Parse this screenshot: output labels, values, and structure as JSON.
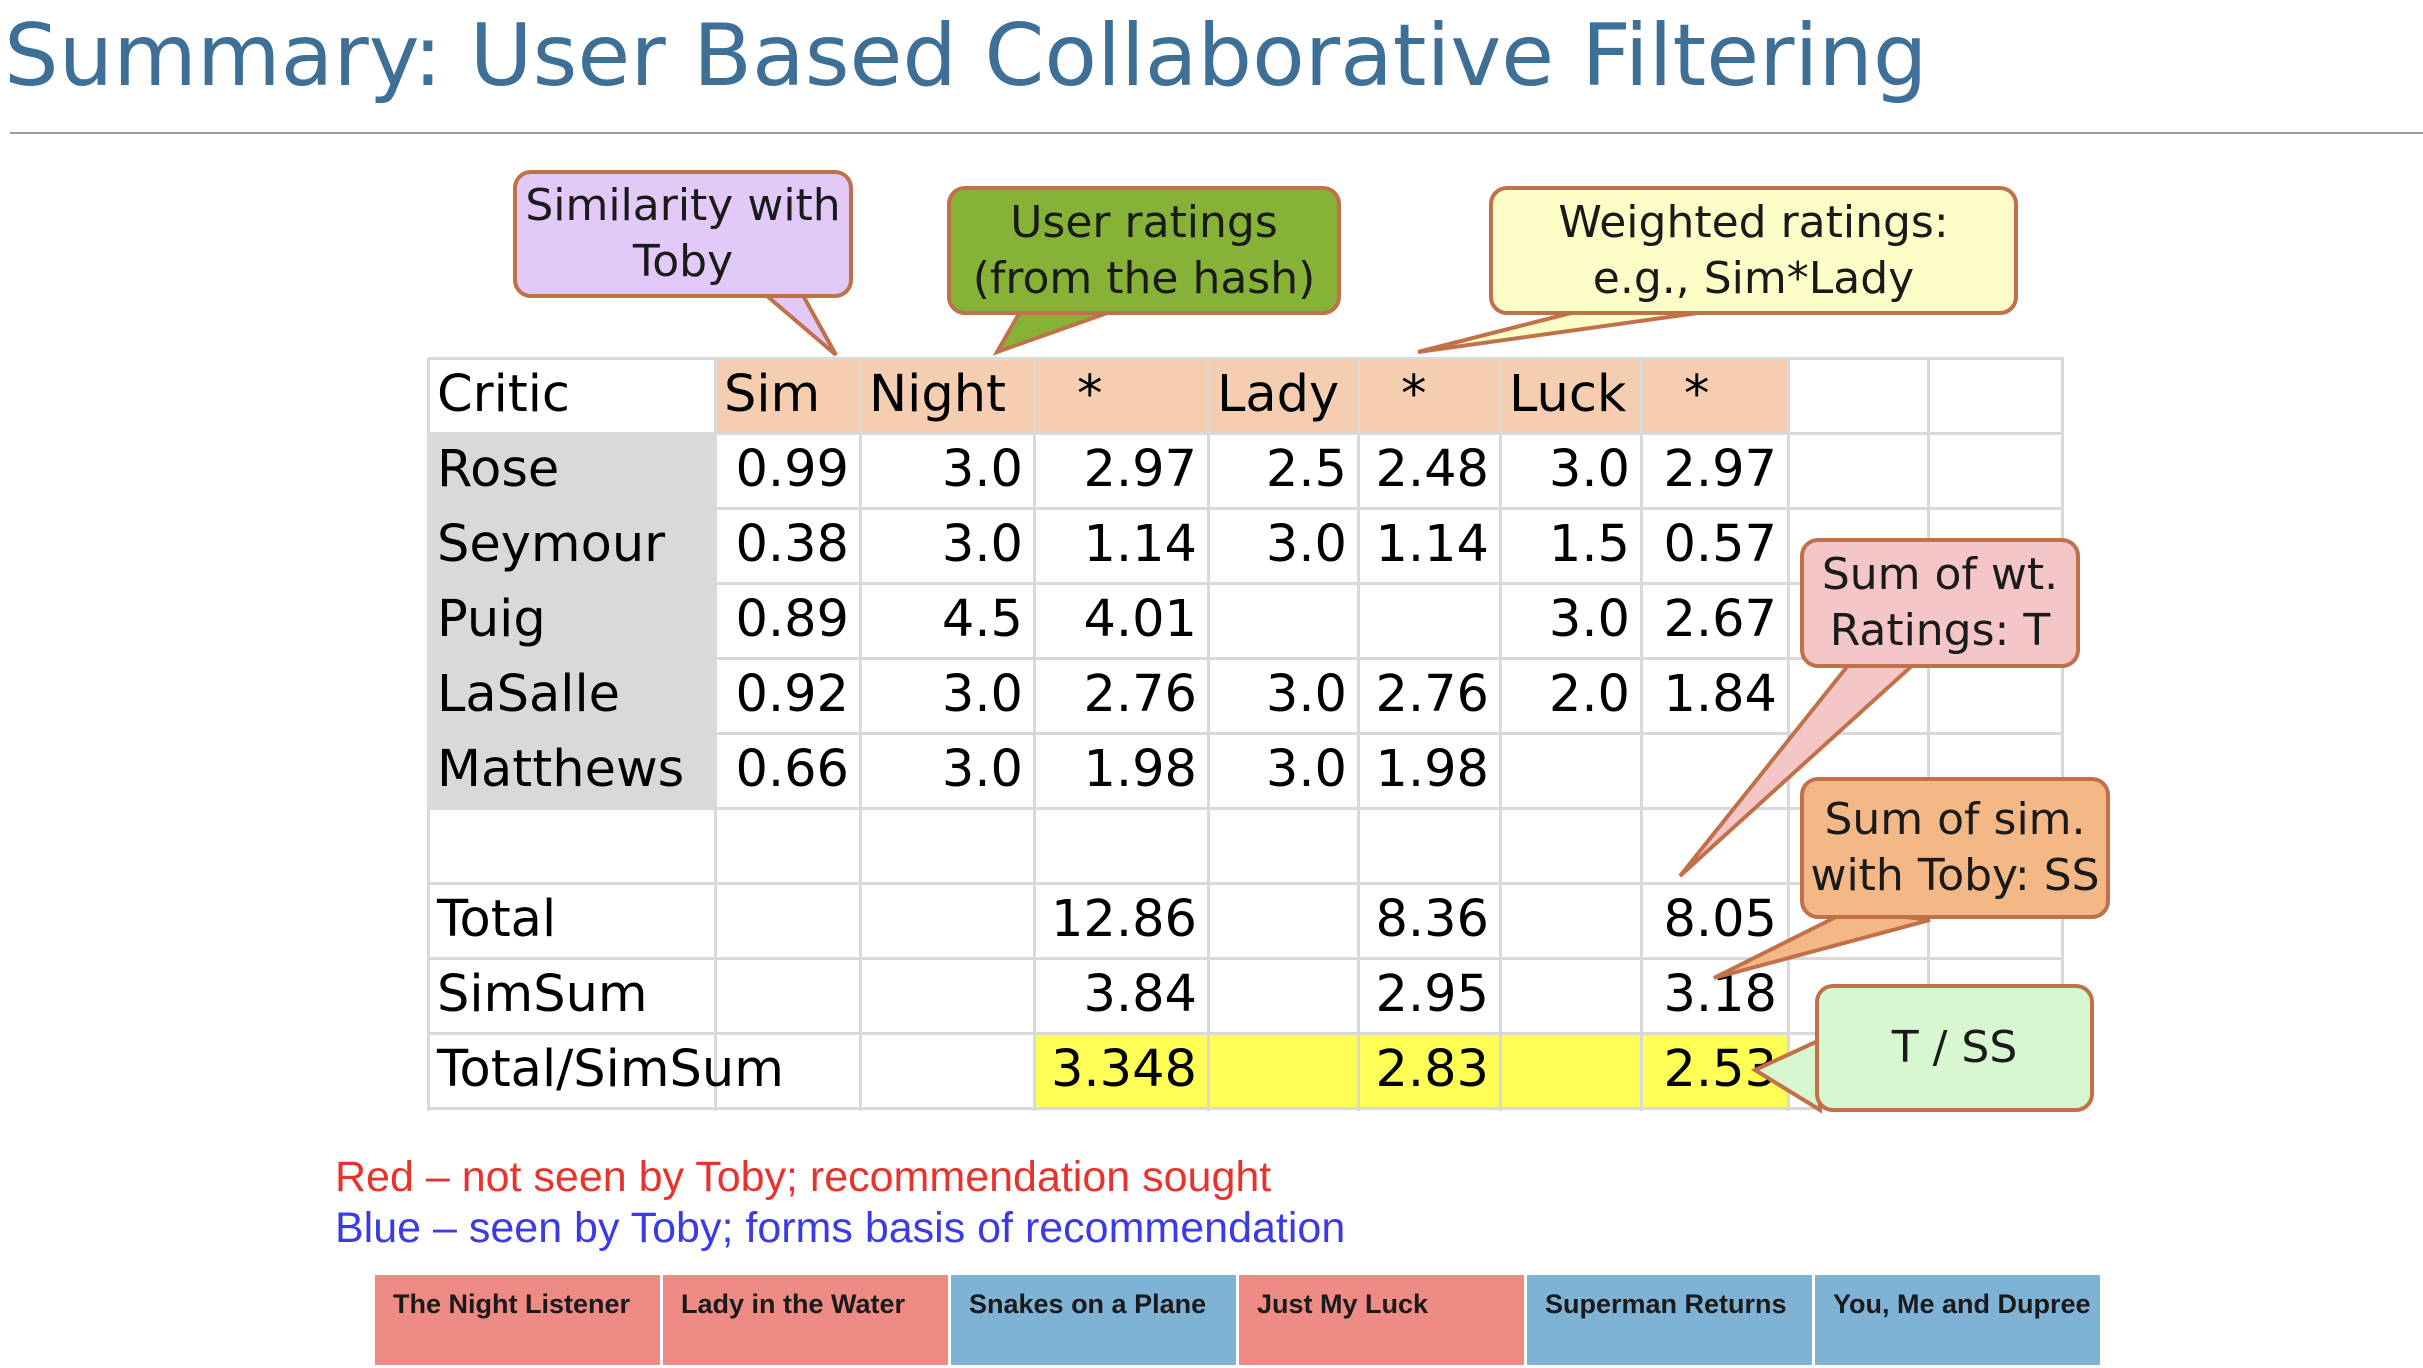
{
  "title": "Summary: User Based Collaborative Filtering",
  "table": {
    "headers": [
      "Critic",
      "Sim",
      "Night",
      "*",
      "Lady",
      "*",
      "Luck",
      "*"
    ],
    "rows": [
      [
        "Rose",
        "0.99",
        "3.0",
        "2.97",
        "2.5",
        "2.48",
        "3.0",
        "2.97"
      ],
      [
        "Seymour",
        "0.38",
        "3.0",
        "1.14",
        "3.0",
        "1.14",
        "1.5",
        "0.57"
      ],
      [
        "Puig",
        "0.89",
        "4.5",
        "4.01",
        "",
        "",
        "3.0",
        "2.67"
      ],
      [
        "LaSalle",
        "0.92",
        "3.0",
        "2.76",
        "3.0",
        "2.76",
        "2.0",
        "1.84"
      ],
      [
        "Matthews",
        "0.66",
        "3.0",
        "1.98",
        "3.0",
        "1.98",
        "",
        ""
      ],
      [
        "",
        "",
        "",
        "",
        "",
        "",
        "",
        ""
      ],
      [
        "Total",
        "",
        "",
        "12.86",
        "",
        "8.36",
        "",
        "8.05"
      ],
      [
        "SimSum",
        "",
        "",
        "3.84",
        "",
        "2.95",
        "",
        "3.18"
      ],
      [
        "Total/SimSum",
        "",
        "",
        "3.348",
        "",
        "2.83",
        "",
        "2.53"
      ]
    ],
    "colors": {
      "header_fill": "#f5cdb0",
      "critic_fill": "#d9d9d9",
      "result_fill": "#ffff55",
      "grid": "#d9d9d9"
    }
  },
  "callouts": {
    "similarity": {
      "text": "Similarity with\nToby",
      "fill": "#e2c9f7"
    },
    "user_ratings": {
      "text": "User ratings\n(from the hash)",
      "fill": "#86b337"
    },
    "weighted": {
      "text": "Weighted ratings:\ne.g., Sim*Lady",
      "fill": "#fdfdc7"
    },
    "sum_wt": {
      "text": "Sum of wt.\nRatings: T",
      "fill": "#f4c6c8"
    },
    "sum_sim": {
      "text": "Sum of sim.\nwith Toby: SS",
      "fill": "#f4b786"
    },
    "t_ss": {
      "text": "T / SS",
      "fill": "#d6f7cf"
    }
  },
  "legend": {
    "red": {
      "text": "Red – not seen by Toby; recommendation sought",
      "color": "#e8332d"
    },
    "blue": {
      "text": "Blue – seen by Toby; forms basis of recommendation",
      "color": "#3b3be6"
    }
  },
  "movies": [
    {
      "title": "The Night Listener",
      "seen": false,
      "color": "#ef8b85"
    },
    {
      "title": "Lady in the Water",
      "seen": false,
      "color": "#ef8b85"
    },
    {
      "title": "Snakes on a Plane",
      "seen": true,
      "color": "#7eb3d6"
    },
    {
      "title": "Just My Luck",
      "seen": false,
      "color": "#ef8b85"
    },
    {
      "title": "Superman Returns",
      "seen": true,
      "color": "#7eb3d6"
    },
    {
      "title": "You, Me and Dupree",
      "seen": true,
      "color": "#7eb3d6"
    }
  ]
}
